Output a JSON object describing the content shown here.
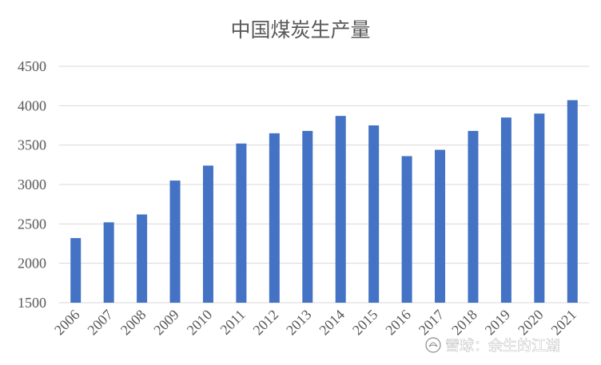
{
  "chart_data": {
    "type": "bar",
    "title": "中国煤炭生产量",
    "xlabel": "",
    "ylabel": "",
    "categories": [
      "2006",
      "2007",
      "2008",
      "2009",
      "2010",
      "2011",
      "2012",
      "2013",
      "2014",
      "2015",
      "2016",
      "2017",
      "2018",
      "2019",
      "2020",
      "2021"
    ],
    "values": [
      2320,
      2520,
      2620,
      3050,
      3240,
      3520,
      3650,
      3680,
      3870,
      3750,
      3360,
      3440,
      3680,
      3850,
      3900,
      4070
    ],
    "ylim": [
      1500,
      4500
    ],
    "yticks": [
      1500,
      2000,
      2500,
      3000,
      3500,
      4000,
      4500
    ],
    "ytick_labels": [
      "1500",
      "2000",
      "2500",
      "3000",
      "3500",
      "4000",
      "4500"
    ],
    "grid": true,
    "legend": "none",
    "colors": {
      "bar": "#4472c4",
      "grid": "#d9d9d9",
      "text": "#595959"
    }
  },
  "watermark": {
    "text": "雪球：余生的江湖",
    "icon": "snowball-logo-icon"
  }
}
